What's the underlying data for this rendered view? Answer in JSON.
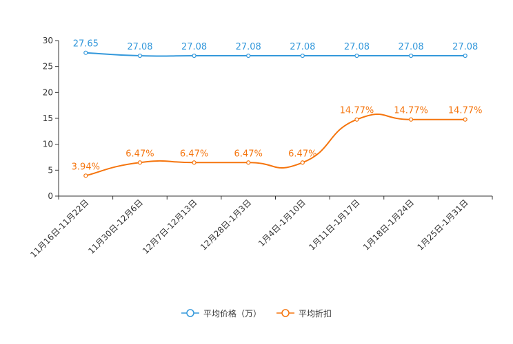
{
  "chart_data": {
    "type": "line",
    "categories": [
      "11月16日-11月22日",
      "11月30日-12月6日",
      "12月7日-12月13日",
      "12月28日-1月3日",
      "1月4日-1月10日",
      "1月11日-1月17日",
      "1月18日-1月24日",
      "1月25日-1月31日"
    ],
    "series": [
      {
        "name": "平均价格（万）",
        "color": "#3398db",
        "values": [
          27.65,
          27.08,
          27.08,
          27.08,
          27.08,
          27.08,
          27.08,
          27.08
        ],
        "labels": [
          "27.65",
          "27.08",
          "27.08",
          "27.08",
          "27.08",
          "27.08",
          "27.08",
          "27.08"
        ]
      },
      {
        "name": "平均折扣",
        "color": "#f5750e",
        "values": [
          3.94,
          6.47,
          6.47,
          6.47,
          6.47,
          14.77,
          14.77,
          14.77
        ],
        "labels": [
          "3.94%",
          "6.47%",
          "6.47%",
          "6.47%",
          "6.47%",
          "14.77%",
          "14.77%",
          "14.77%"
        ]
      }
    ],
    "ylim": [
      0,
      30
    ],
    "yticks": [
      0,
      5,
      10,
      15,
      20,
      25,
      30
    ],
    "ytick_labels": [
      "0",
      "5",
      "10",
      "15",
      "20",
      "25",
      "30"
    ],
    "legend_position": "bottom-center",
    "grid": false
  },
  "legend": {
    "items": [
      {
        "label": "平均价格（万）",
        "color": "#3398db"
      },
      {
        "label": "平均折扣",
        "color": "#f5750e"
      }
    ]
  }
}
